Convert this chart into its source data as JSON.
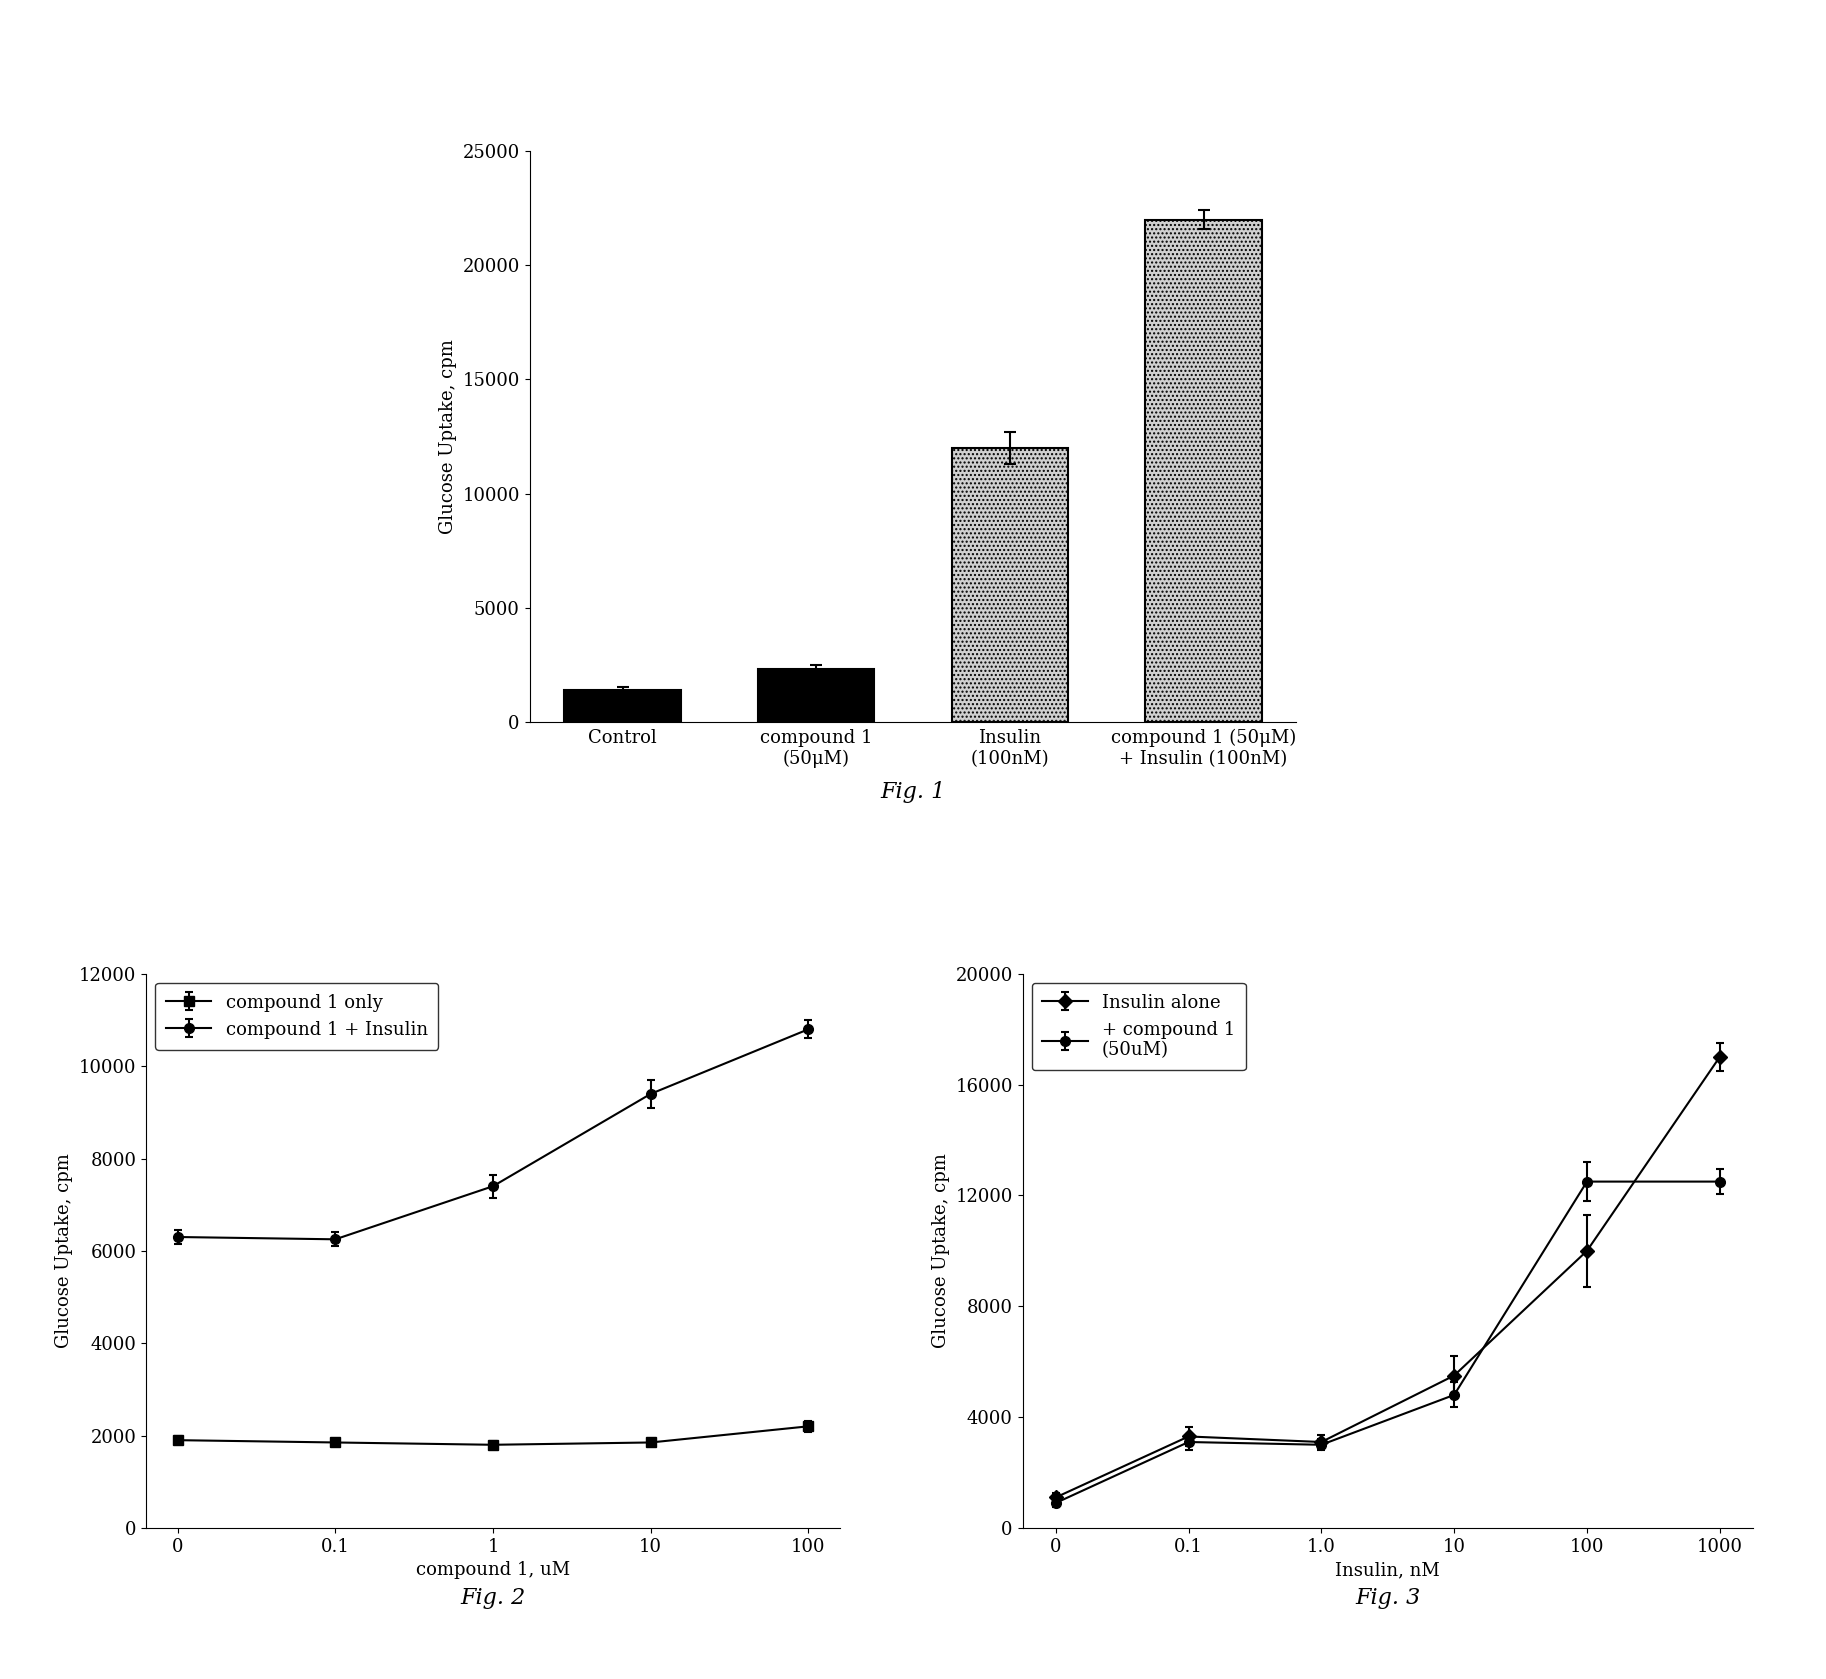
{
  "fig1": {
    "categories": [
      "Control",
      "compound 1\n(50μM)",
      "Insulin\n(100nM)",
      "compound 1 (50μM)\n+ Insulin (100nM)"
    ],
    "values": [
      1400,
      2300,
      12000,
      22000
    ],
    "errors": [
      150,
      200,
      700,
      400
    ],
    "ylabel": "Glucose Uptake, cpm",
    "ylim": [
      0,
      25000
    ],
    "yticks": [
      0,
      5000,
      10000,
      15000,
      20000,
      25000
    ],
    "fig_label": "Fig. 1"
  },
  "fig2": {
    "x_labels": [
      "0",
      "0.1",
      "1",
      "10",
      "100"
    ],
    "y_compound1_only": [
      1900,
      1850,
      1800,
      1850,
      2200
    ],
    "y_compound1_insulin": [
      6300,
      6250,
      7400,
      9400,
      10800
    ],
    "err_compound1_only": [
      80,
      80,
      80,
      80,
      120
    ],
    "err_compound1_insulin": [
      150,
      150,
      250,
      300,
      200
    ],
    "ylabel": "Glucose Uptake, cpm",
    "xlabel": "compound 1, uM",
    "ylim": [
      0,
      12000
    ],
    "yticks": [
      0,
      2000,
      4000,
      6000,
      8000,
      10000,
      12000
    ],
    "legend1": "compound 1 only",
    "legend2": "compound 1 + Insulin",
    "fig_label": "Fig. 2"
  },
  "fig3": {
    "x_labels": [
      "0",
      "0.1",
      "1.0",
      "10",
      "100",
      "1000"
    ],
    "y_insulin_alone": [
      1100,
      3300,
      3100,
      5500,
      10000,
      17000
    ],
    "y_plus_compound1": [
      900,
      3100,
      3000,
      4800,
      12500,
      12500
    ],
    "err_insulin_alone": [
      150,
      350,
      250,
      700,
      1300,
      500
    ],
    "err_plus_compound1": [
      150,
      300,
      200,
      450,
      700,
      450
    ],
    "ylabel": "Glucose Uptake, cpm",
    "xlabel": "Insulin, nM",
    "ylim": [
      0,
      20000
    ],
    "yticks": [
      0,
      4000,
      8000,
      12000,
      16000,
      20000
    ],
    "legend1": "Insulin alone",
    "legend2": "+ compound 1\n(50uM)",
    "fig_label": "Fig. 3"
  },
  "background_color": "#ffffff",
  "font_size": 13,
  "label_font_size": 13
}
